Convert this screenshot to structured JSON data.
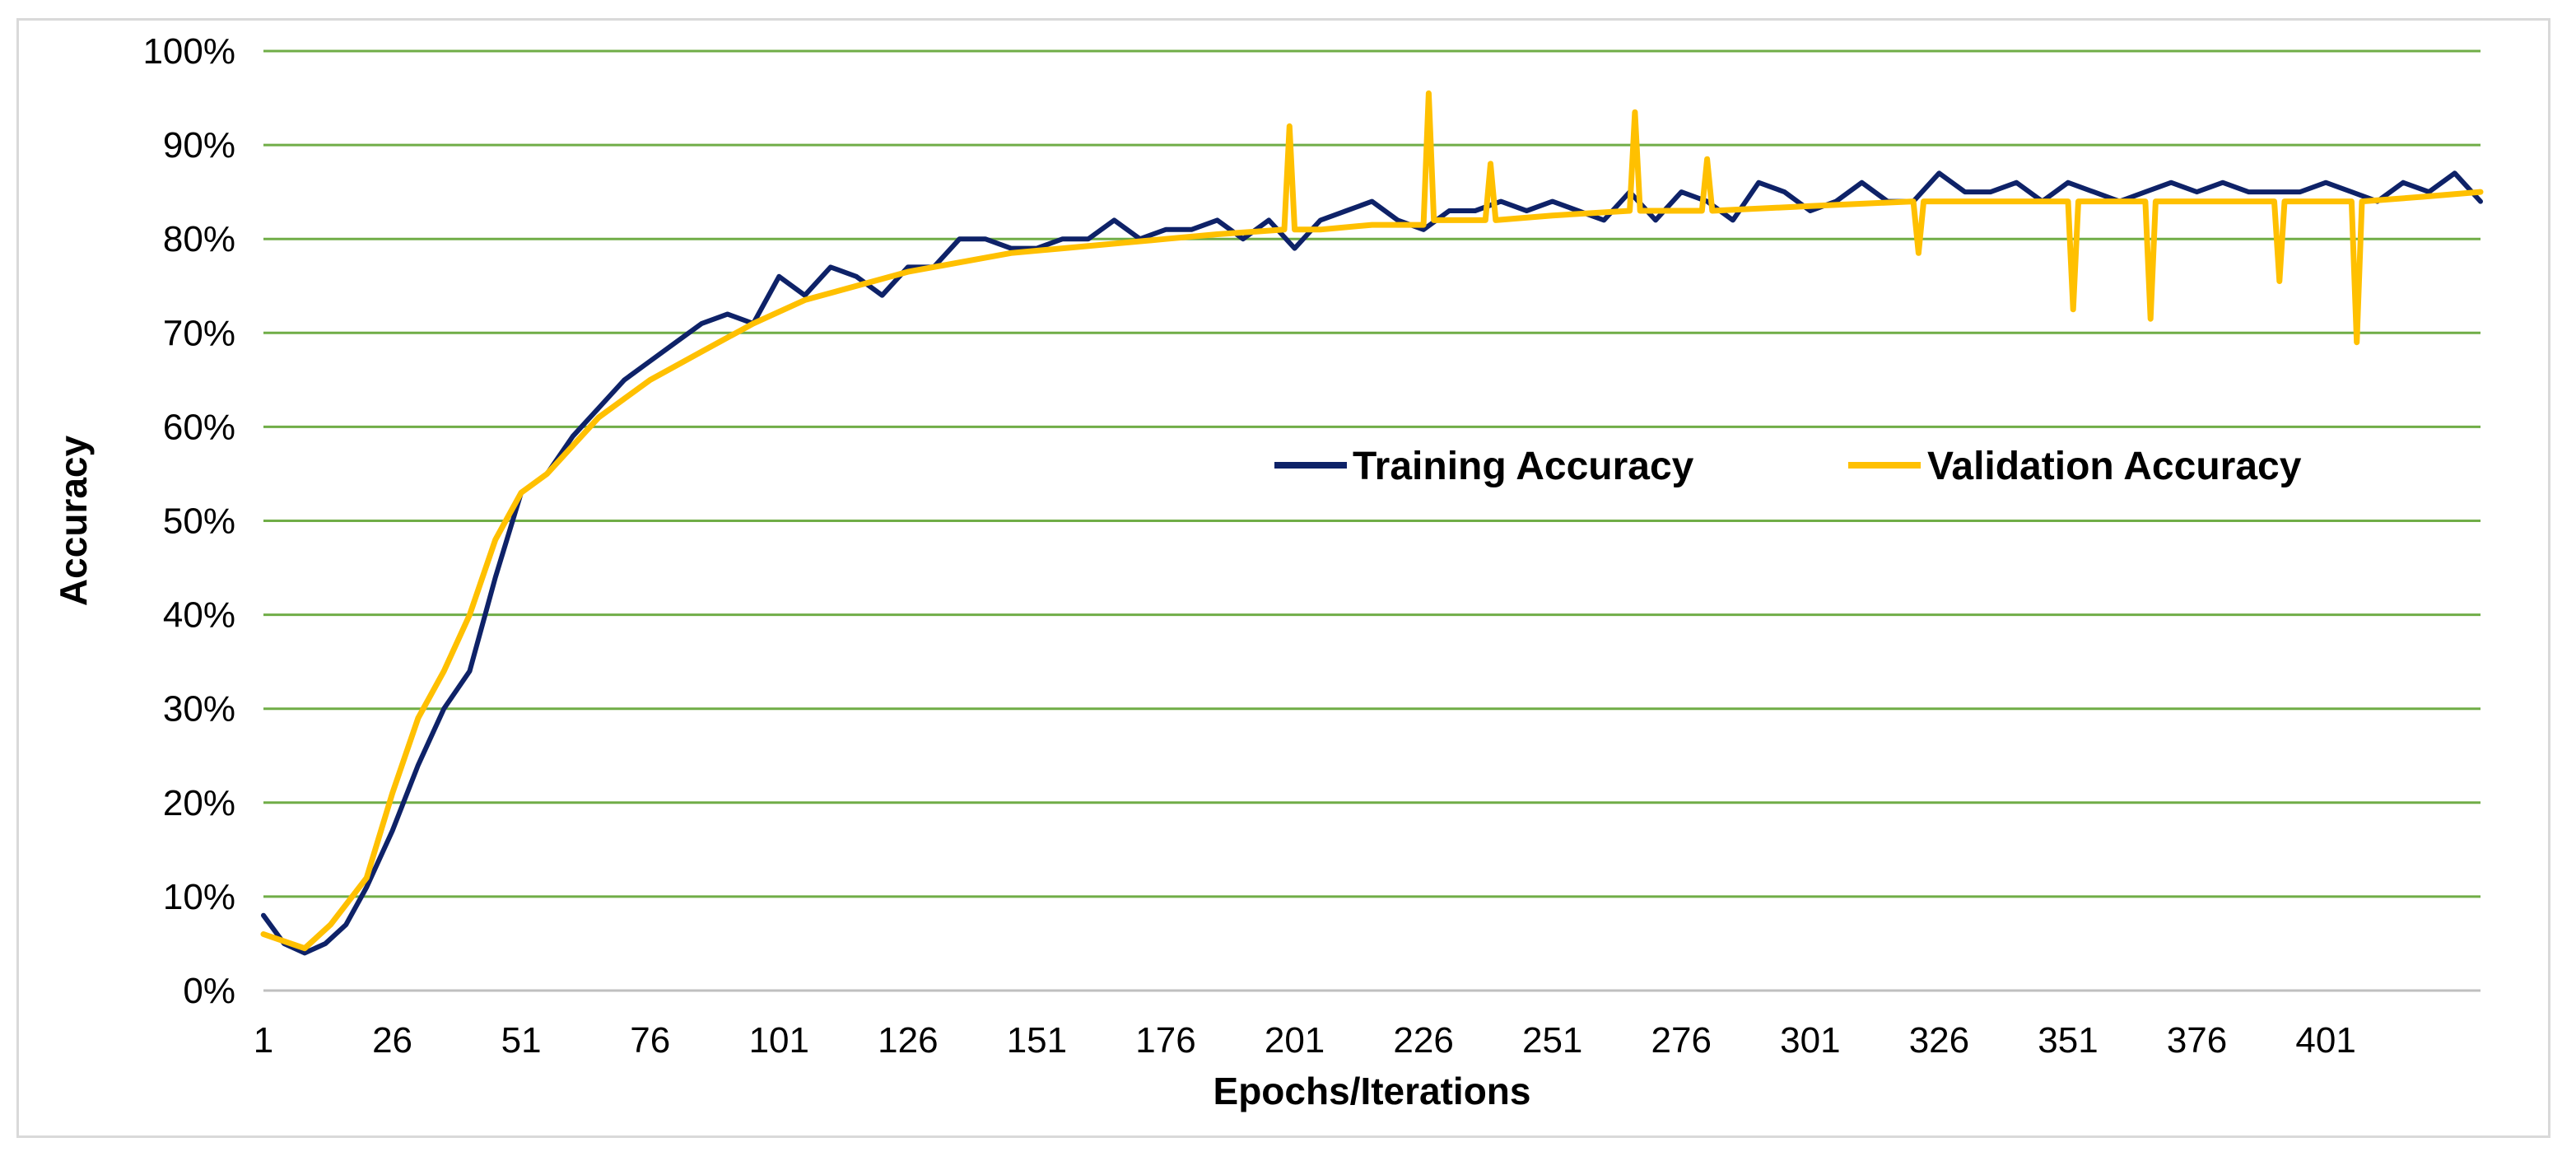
{
  "chart_data": {
    "type": "line",
    "title": "",
    "xlabel": "Epochs/Iterations",
    "ylabel": "Accuracy",
    "xlim": [
      1,
      431
    ],
    "ylim": [
      0,
      100
    ],
    "x_tick_labels": [
      "1",
      "26",
      "51",
      "76",
      "101",
      "126",
      "151",
      "176",
      "201",
      "226",
      "251",
      "276",
      "301",
      "326",
      "351",
      "376",
      "401"
    ],
    "x_tick_values": [
      1,
      26,
      51,
      76,
      101,
      126,
      151,
      176,
      201,
      226,
      251,
      276,
      301,
      326,
      351,
      376,
      401
    ],
    "y_tick_labels": [
      "0%",
      "10%",
      "20%",
      "30%",
      "40%",
      "50%",
      "60%",
      "70%",
      "80%",
      "90%",
      "100%"
    ],
    "y_tick_values": [
      0,
      10,
      20,
      30,
      40,
      50,
      60,
      70,
      80,
      90,
      100
    ],
    "grid": "horizontal",
    "legend_position": "center-right",
    "colors": {
      "training": "#0e2268",
      "validation": "#ffc000",
      "grid": "#70ad47",
      "axis": "#bfbfbf"
    },
    "series": [
      {
        "name": "Training Accuracy",
        "x": [
          1,
          5,
          9,
          13,
          17,
          21,
          26,
          31,
          36,
          41,
          46,
          51,
          56,
          61,
          66,
          71,
          76,
          81,
          86,
          91,
          96,
          101,
          106,
          111,
          116,
          121,
          126,
          131,
          136,
          141,
          146,
          151,
          156,
          161,
          166,
          171,
          176,
          181,
          186,
          191,
          196,
          201,
          206,
          211,
          216,
          221,
          226,
          231,
          236,
          241,
          246,
          251,
          256,
          261,
          266,
          271,
          276,
          281,
          286,
          291,
          296,
          301,
          306,
          311,
          316,
          321,
          326,
          331,
          336,
          341,
          346,
          351,
          356,
          361,
          366,
          371,
          376,
          381,
          386,
          391,
          396,
          401,
          406,
          411,
          416,
          421,
          426,
          431
        ],
        "values": [
          8,
          5,
          4,
          5,
          7,
          11,
          17,
          24,
          30,
          34,
          44,
          53,
          55,
          59,
          62,
          65,
          67,
          69,
          71,
          72,
          71,
          76,
          74,
          77,
          76,
          74,
          77,
          77,
          80,
          80,
          79,
          79,
          80,
          80,
          82,
          80,
          81,
          81,
          82,
          80,
          82,
          79,
          82,
          83,
          84,
          82,
          81,
          83,
          83,
          84,
          83,
          84,
          83,
          82,
          85,
          82,
          85,
          84,
          82,
          86,
          85,
          83,
          84,
          86,
          84,
          84,
          87,
          85,
          85,
          86,
          84,
          86,
          85,
          84,
          85,
          86,
          85,
          86,
          85,
          85,
          85,
          86,
          85,
          84,
          86,
          85,
          87,
          84
        ]
      },
      {
        "name": "Validation Accuracy",
        "x": [
          1,
          9,
          14,
          21,
          26,
          31,
          36,
          41,
          46,
          51,
          56,
          61,
          66,
          76,
          86,
          96,
          106,
          116,
          126,
          136,
          146,
          156,
          166,
          176,
          186,
          199,
          200,
          201,
          206,
          216,
          226,
          227,
          228,
          230,
          238,
          239,
          240,
          251,
          266,
          267,
          268,
          270,
          280,
          281,
          282,
          301,
          321,
          322,
          323,
          351,
          352,
          353,
          366,
          367,
          368,
          391,
          392,
          393,
          406,
          407,
          408,
          420,
          431
        ],
        "values": [
          6,
          4.5,
          7,
          12,
          21,
          29,
          34,
          40,
          48,
          53,
          55,
          58,
          61,
          65,
          68,
          71,
          73.5,
          75,
          76.5,
          77.5,
          78.5,
          79,
          79.5,
          80,
          80.5,
          81,
          92,
          81,
          81,
          81.5,
          81.5,
          95.5,
          82,
          82,
          82,
          88,
          82,
          82.5,
          83,
          93.5,
          83,
          83,
          83,
          88.5,
          83,
          83.5,
          84,
          78.5,
          84,
          84,
          72.5,
          84,
          84,
          71.5,
          84,
          84,
          75.5,
          84,
          84,
          69,
          84,
          84.5,
          85
        ]
      }
    ]
  }
}
